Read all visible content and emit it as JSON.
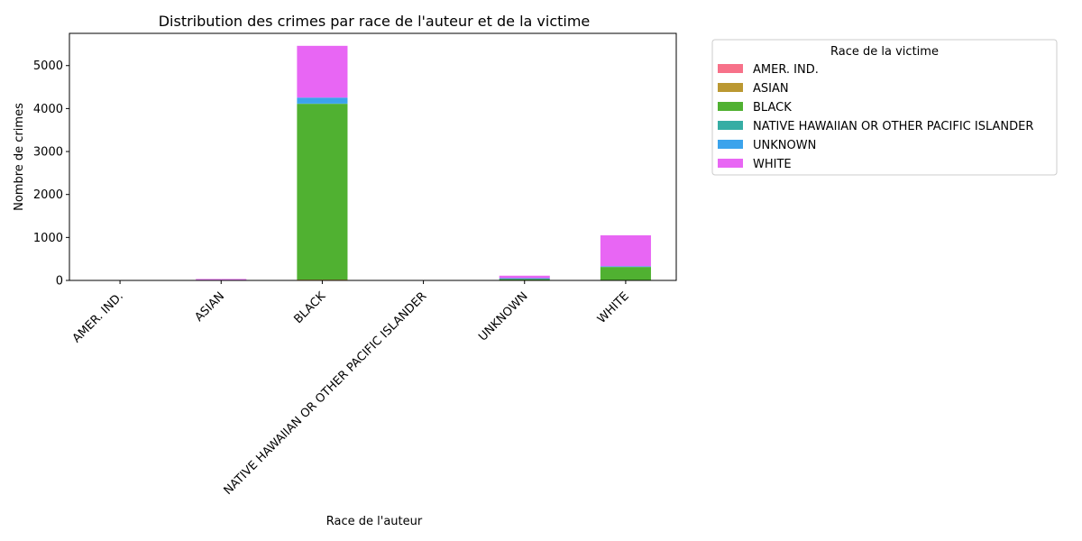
{
  "chart_data": {
    "type": "bar",
    "stacked": true,
    "title": "Distribution des crimes par race de l'auteur et de la victime",
    "xlabel": "Race de l'auteur",
    "ylabel": "Nombre de crimes",
    "ylim": [
      0,
      5750
    ],
    "yticks": [
      0,
      1000,
      2000,
      3000,
      4000,
      5000
    ],
    "categories": [
      "AMER. IND.",
      "ASIAN",
      "BLACK",
      "NATIVE HAWAIIAN OR OTHER PACIFIC ISLANDER",
      "UNKNOWN",
      "WHITE"
    ],
    "legend": {
      "title": "Race de la victime",
      "placement": "outside-top-right"
    },
    "grid": false,
    "series": [
      {
        "name": "AMER. IND.",
        "color": "#f77189",
        "values": [
          3,
          0,
          5,
          0,
          0,
          2
        ]
      },
      {
        "name": "ASIAN",
        "color": "#bb9832",
        "values": [
          0,
          8,
          15,
          0,
          2,
          5
        ]
      },
      {
        "name": "BLACK",
        "color": "#50b131",
        "values": [
          1,
          3,
          4090,
          0,
          30,
          305
        ]
      },
      {
        "name": "NATIVE HAWAIIAN OR OTHER PACIFIC ISLANDER",
        "color": "#36ada4",
        "values": [
          0,
          0,
          5,
          0,
          0,
          2
        ]
      },
      {
        "name": "UNKNOWN",
        "color": "#3ba3ec",
        "values": [
          0,
          2,
          140,
          0,
          20,
          15
        ]
      },
      {
        "name": "WHITE",
        "color": "#e866f4",
        "values": [
          5,
          20,
          1205,
          2,
          58,
          721
        ]
      }
    ]
  }
}
